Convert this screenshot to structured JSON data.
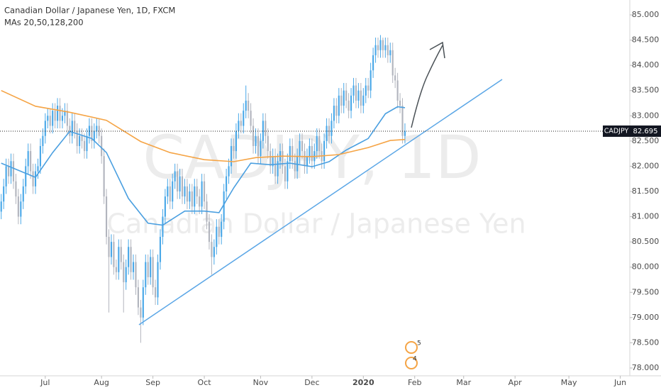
{
  "chart_data": {
    "type": "candlestick",
    "title": "Canadian Dollar / Japanese Yen, 1D, FXCM",
    "subtitle": "MAs 20,50,128,200",
    "watermark": [
      "CADJPY, 1D",
      "Canadian Dollar / Japanese Yen"
    ],
    "up_color": "#4aa8e8",
    "down_color": "#b2b5be",
    "grid": false,
    "xlim": [
      -0.5,
      256.9
    ],
    "ylim": [
      77.845,
      85.295
    ],
    "xticks": [
      {
        "value": 18,
        "label": "Jul"
      },
      {
        "value": 41,
        "label": "Aug"
      },
      {
        "value": 62,
        "label": "Sep"
      },
      {
        "value": 83,
        "label": "Oct"
      },
      {
        "value": 106,
        "label": "Nov"
      },
      {
        "value": 127,
        "label": "Dec"
      },
      {
        "value": 148,
        "label": "2020"
      },
      {
        "value": 169,
        "label": "Feb"
      },
      {
        "value": 189,
        "label": "Mar"
      },
      {
        "value": 210,
        "label": "Apr"
      },
      {
        "value": 232,
        "label": "May"
      },
      {
        "value": 253,
        "label": "Jun"
      }
    ],
    "yticks": [
      {
        "value": 78,
        "label": "78.000"
      },
      {
        "value": 78.5,
        "label": "78.500"
      },
      {
        "value": 79,
        "label": "79.000"
      },
      {
        "value": 79.5,
        "label": "79.500"
      },
      {
        "value": 80,
        "label": "80.000"
      },
      {
        "value": 80.5,
        "label": "80.500"
      },
      {
        "value": 81,
        "label": "81.000"
      },
      {
        "value": 81.5,
        "label": "81.500"
      },
      {
        "value": 82,
        "label": "82.000"
      },
      {
        "value": 82.5,
        "label": "82.500"
      },
      {
        "value": 83,
        "label": "83.000"
      },
      {
        "value": 83.5,
        "label": "83.500"
      },
      {
        "value": 84,
        "label": "84.000"
      },
      {
        "value": 84.5,
        "label": "84.500"
      },
      {
        "value": 85,
        "label": "85.000"
      }
    ],
    "symbol": "CADJPY",
    "last_price": 82.695,
    "events": [
      "5",
      "4"
    ],
    "ohlc": [
      [
        81.1,
        81.45,
        80.95,
        81.3
      ],
      [
        81.3,
        81.75,
        81.15,
        81.6
      ],
      [
        81.6,
        82.15,
        81.45,
        82.0
      ],
      [
        82.0,
        82.15,
        81.65,
        81.8
      ],
      [
        81.8,
        82.25,
        81.65,
        82.1
      ],
      [
        82.1,
        82.25,
        81.55,
        81.7
      ],
      [
        81.7,
        81.85,
        81.25,
        81.4
      ],
      [
        81.4,
        81.55,
        80.85,
        81.0
      ],
      [
        81.0,
        81.45,
        80.85,
        81.3
      ],
      [
        81.3,
        81.75,
        81.15,
        81.6
      ],
      [
        81.6,
        82.15,
        81.45,
        82.0
      ],
      [
        82.0,
        82.45,
        81.85,
        82.3
      ],
      [
        82.3,
        82.45,
        81.75,
        81.9
      ],
      [
        81.9,
        82.05,
        81.45,
        81.6
      ],
      [
        81.6,
        82.05,
        81.45,
        81.9
      ],
      [
        81.9,
        82.15,
        81.75,
        82.0
      ],
      [
        82.0,
        82.55,
        81.85,
        82.4
      ],
      [
        82.4,
        82.75,
        82.25,
        82.6
      ],
      [
        82.6,
        83.05,
        82.45,
        82.9
      ],
      [
        82.9,
        83.15,
        82.75,
        83.0
      ],
      [
        83.0,
        83.15,
        82.65,
        82.8
      ],
      [
        82.8,
        83.25,
        82.65,
        83.1
      ],
      [
        83.1,
        83.25,
        82.75,
        82.9
      ],
      [
        82.9,
        83.35,
        82.75,
        83.2
      ],
      [
        83.2,
        83.35,
        82.75,
        82.9
      ],
      [
        82.9,
        83.15,
        82.75,
        83.0
      ],
      [
        83.0,
        83.25,
        82.85,
        83.1
      ],
      [
        83.1,
        83.25,
        82.65,
        82.8
      ],
      [
        82.8,
        82.95,
        82.45,
        82.6
      ],
      [
        82.6,
        83.05,
        82.45,
        82.9
      ],
      [
        82.9,
        83.05,
        82.55,
        82.7
      ],
      [
        82.7,
        82.85,
        82.25,
        82.4
      ],
      [
        82.4,
        82.75,
        82.25,
        82.6
      ],
      [
        82.6,
        82.75,
        82.35,
        82.5
      ],
      [
        82.5,
        82.65,
        82.15,
        82.3
      ],
      [
        82.3,
        82.75,
        82.15,
        82.6
      ],
      [
        82.6,
        82.95,
        82.45,
        82.8
      ],
      [
        82.8,
        82.95,
        82.35,
        82.5
      ],
      [
        82.5,
        82.85,
        82.35,
        82.7
      ],
      [
        82.7,
        82.95,
        82.55,
        82.8
      ],
      [
        82.8,
        82.95,
        82.45,
        82.6
      ],
      [
        82.6,
        82.75,
        82.05,
        82.2
      ],
      [
        82.2,
        82.35,
        81.25,
        81.4
      ],
      [
        81.4,
        81.55,
        80.45,
        80.6
      ],
      [
        80.6,
        80.75,
        79.1,
        80.2
      ],
      [
        80.2,
        80.65,
        80.05,
        80.5
      ],
      [
        80.5,
        80.65,
        79.85,
        80.0
      ],
      [
        80.0,
        80.15,
        79.75,
        79.9
      ],
      [
        79.9,
        80.55,
        79.75,
        80.4
      ],
      [
        80.4,
        80.55,
        79.95,
        80.1
      ],
      [
        80.1,
        80.25,
        79.1,
        79.7
      ],
      [
        79.7,
        80.15,
        79.55,
        80.0
      ],
      [
        80.0,
        80.55,
        79.85,
        80.4
      ],
      [
        80.4,
        80.55,
        79.75,
        79.9
      ],
      [
        79.9,
        80.25,
        79.75,
        80.1
      ],
      [
        80.1,
        80.25,
        79.45,
        79.6
      ],
      [
        79.6,
        79.75,
        79.05,
        79.2
      ],
      [
        79.2,
        79.35,
        78.5,
        79.0
      ],
      [
        79.0,
        79.75,
        78.85,
        79.6
      ],
      [
        79.6,
        80.25,
        79.45,
        80.1
      ],
      [
        80.1,
        80.25,
        79.65,
        79.8
      ],
      [
        79.8,
        80.35,
        79.65,
        80.2
      ],
      [
        80.2,
        80.35,
        79.45,
        79.6
      ],
      [
        79.6,
        79.75,
        79.25,
        79.4
      ],
      [
        79.4,
        80.25,
        79.25,
        80.1
      ],
      [
        80.1,
        80.75,
        79.95,
        80.6
      ],
      [
        80.6,
        81.15,
        80.45,
        81.0
      ],
      [
        81.0,
        81.55,
        80.85,
        81.4
      ],
      [
        81.4,
        81.75,
        81.25,
        81.6
      ],
      [
        81.6,
        81.75,
        81.15,
        81.3
      ],
      [
        81.3,
        81.85,
        81.15,
        81.7
      ],
      [
        81.7,
        82.05,
        81.55,
        81.9
      ],
      [
        81.9,
        82.05,
        81.35,
        81.5
      ],
      [
        81.5,
        81.95,
        81.35,
        81.8
      ],
      [
        81.8,
        81.95,
        81.25,
        81.4
      ],
      [
        81.4,
        81.75,
        81.25,
        81.6
      ],
      [
        81.6,
        81.75,
        81.15,
        81.3
      ],
      [
        81.3,
        81.65,
        81.15,
        81.5
      ],
      [
        81.5,
        81.65,
        81.05,
        81.2
      ],
      [
        81.2,
        81.75,
        81.05,
        81.6
      ],
      [
        81.6,
        81.75,
        81.25,
        81.4
      ],
      [
        81.4,
        81.55,
        81.05,
        81.2
      ],
      [
        81.2,
        81.85,
        81.05,
        81.7
      ],
      [
        81.7,
        81.85,
        81.15,
        81.3
      ],
      [
        81.3,
        81.45,
        80.75,
        80.9
      ],
      [
        80.9,
        81.05,
        80.35,
        80.5
      ],
      [
        80.5,
        80.65,
        79.85,
        80.2
      ],
      [
        80.2,
        80.55,
        80.05,
        80.4
      ],
      [
        80.4,
        80.95,
        80.25,
        80.8
      ],
      [
        80.8,
        80.95,
        80.45,
        80.6
      ],
      [
        80.6,
        81.05,
        80.45,
        80.9
      ],
      [
        80.9,
        81.65,
        80.75,
        81.5
      ],
      [
        81.5,
        81.95,
        81.35,
        81.8
      ],
      [
        81.8,
        82.15,
        81.65,
        82.0
      ],
      [
        82.0,
        82.55,
        81.85,
        82.4
      ],
      [
        82.4,
        82.55,
        82.15,
        82.3
      ],
      [
        82.3,
        82.85,
        82.15,
        82.7
      ],
      [
        82.7,
        83.05,
        82.55,
        82.9
      ],
      [
        82.9,
        83.05,
        82.65,
        82.8
      ],
      [
        82.8,
        83.25,
        82.65,
        83.1
      ],
      [
        83.1,
        83.6,
        82.95,
        83.3
      ],
      [
        83.3,
        83.45,
        82.95,
        83.1
      ],
      [
        83.1,
        83.25,
        82.65,
        82.8
      ],
      [
        82.8,
        82.95,
        82.25,
        82.4
      ],
      [
        82.4,
        82.75,
        82.25,
        82.6
      ],
      [
        82.6,
        82.75,
        82.05,
        82.2
      ],
      [
        82.2,
        82.65,
        82.05,
        82.5
      ],
      [
        82.5,
        83.05,
        82.35,
        82.9
      ],
      [
        82.9,
        83.05,
        82.45,
        82.6
      ],
      [
        82.6,
        82.75,
        82.15,
        82.3
      ],
      [
        82.3,
        82.45,
        81.85,
        82.0
      ],
      [
        82.0,
        82.35,
        81.85,
        82.2
      ],
      [
        82.2,
        82.35,
        81.65,
        81.8
      ],
      [
        81.8,
        82.25,
        81.65,
        82.1
      ],
      [
        82.1,
        82.45,
        81.95,
        82.3
      ],
      [
        82.3,
        82.45,
        81.85,
        82.0
      ],
      [
        82.0,
        82.15,
        81.55,
        81.7
      ],
      [
        81.7,
        82.25,
        81.55,
        82.1
      ],
      [
        82.1,
        82.55,
        81.95,
        82.4
      ],
      [
        82.4,
        82.55,
        81.95,
        82.1
      ],
      [
        82.1,
        82.25,
        81.75,
        81.9
      ],
      [
        81.9,
        82.35,
        81.75,
        82.2
      ],
      [
        82.2,
        82.65,
        82.05,
        82.5
      ],
      [
        82.5,
        82.65,
        82.15,
        82.3
      ],
      [
        82.3,
        82.45,
        81.85,
        82.0
      ],
      [
        82.0,
        82.35,
        81.85,
        82.2
      ],
      [
        82.2,
        82.55,
        82.05,
        82.4
      ],
      [
        82.4,
        82.55,
        81.95,
        82.1
      ],
      [
        82.1,
        82.45,
        81.95,
        82.3
      ],
      [
        82.3,
        82.75,
        82.15,
        82.6
      ],
      [
        82.6,
        82.75,
        82.15,
        82.3
      ],
      [
        82.3,
        82.45,
        81.95,
        82.1
      ],
      [
        82.1,
        82.65,
        81.95,
        82.5
      ],
      [
        82.5,
        82.95,
        82.35,
        82.8
      ],
      [
        82.8,
        82.95,
        82.45,
        82.6
      ],
      [
        82.6,
        83.05,
        82.45,
        82.9
      ],
      [
        82.9,
        83.35,
        82.75,
        83.2
      ],
      [
        83.2,
        83.35,
        82.85,
        83.0
      ],
      [
        83.0,
        83.55,
        82.85,
        83.4
      ],
      [
        83.4,
        83.55,
        83.05,
        83.2
      ],
      [
        83.2,
        83.65,
        83.05,
        83.5
      ],
      [
        83.5,
        83.65,
        83.15,
        83.3
      ],
      [
        83.3,
        83.45,
        82.95,
        83.1
      ],
      [
        83.1,
        83.55,
        82.95,
        83.4
      ],
      [
        83.4,
        83.75,
        83.25,
        83.6
      ],
      [
        83.6,
        83.75,
        83.15,
        83.3
      ],
      [
        83.3,
        83.65,
        83.15,
        83.5
      ],
      [
        83.5,
        83.65,
        83.05,
        83.2
      ],
      [
        83.2,
        83.55,
        83.05,
        83.4
      ],
      [
        83.4,
        83.75,
        83.25,
        83.6
      ],
      [
        83.6,
        83.75,
        83.35,
        83.5
      ],
      [
        83.5,
        84.05,
        83.35,
        83.9
      ],
      [
        83.9,
        84.35,
        83.75,
        84.2
      ],
      [
        84.2,
        84.55,
        84.05,
        84.4
      ],
      [
        84.4,
        84.55,
        84.15,
        84.3
      ],
      [
        84.3,
        84.6,
        84.15,
        84.5
      ],
      [
        84.5,
        84.55,
        84.15,
        84.3
      ],
      [
        84.3,
        84.55,
        84.15,
        84.4
      ],
      [
        84.4,
        84.55,
        84.05,
        84.2
      ],
      [
        84.2,
        84.45,
        84.05,
        84.3
      ],
      [
        84.3,
        84.45,
        83.65,
        83.8
      ],
      [
        83.8,
        83.95,
        83.55,
        83.7
      ],
      [
        83.7,
        83.85,
        83.15,
        83.3
      ],
      [
        83.3,
        83.45,
        83.05,
        83.2
      ],
      [
        83.2,
        83.35,
        82.45,
        82.6
      ],
      [
        82.6,
        82.85,
        82.45,
        82.7
      ]
    ],
    "series": [
      {
        "color": "#4a9fe0",
        "x": [
          0,
          14,
          21,
          28,
          37,
          43,
          52,
          60,
          66,
          75,
          83,
          89,
          95,
          102,
          110,
          118,
          127,
          134,
          141,
          150,
          157,
          162,
          165
        ],
        "values": [
          82.06,
          81.78,
          82.27,
          82.69,
          82.55,
          82.27,
          81.36,
          80.87,
          80.83,
          81.11,
          81.11,
          81.08,
          81.57,
          82.06,
          82.03,
          82.06,
          81.99,
          82.09,
          82.32,
          82.55,
          83.04,
          83.18,
          83.16
        ]
      },
      {
        "color": "#f5a445",
        "x": [
          0,
          14,
          28,
          43,
          57,
          69,
          83,
          95,
          104,
          115,
          127,
          138,
          150,
          159,
          165
        ],
        "values": [
          83.5,
          83.19,
          83.07,
          82.91,
          82.49,
          82.27,
          82.13,
          82.09,
          82.17,
          82.2,
          82.19,
          82.23,
          82.37,
          82.51,
          82.53
        ]
      }
    ]
  }
}
